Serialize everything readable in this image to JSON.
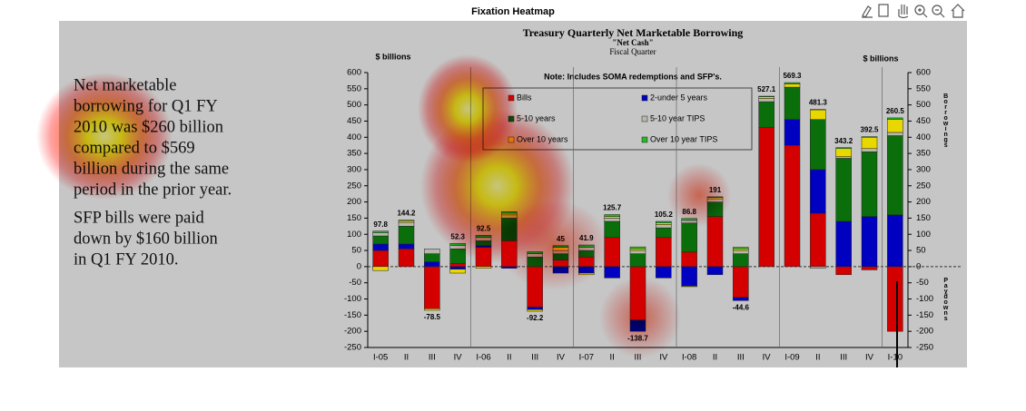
{
  "window": {
    "title": "Fixation Heatmap"
  },
  "slide": {
    "paragraphs": [
      {
        "lines": [
          "Net marketable",
          "borrowing for Q1 FY",
          "2010 was $260 billion",
          "compared to $569",
          "billion during the same",
          "period in the prior year."
        ]
      },
      {
        "lines": [
          "SFP bills were paid",
          "down by $160 billion",
          "in Q1 FY 2010."
        ]
      }
    ]
  },
  "chart_data": {
    "type": "bar",
    "stacked": true,
    "title": "Treasury Quarterly Net Marketable Borrowing",
    "subtitle": [
      "\"Net Cash\"",
      "Fiscal Quarter"
    ],
    "y_label": "$ billions",
    "y2_label": "$ billions",
    "note": "Note: Includes SOMA redemptions and SFP's.",
    "y2_annotations": [
      "Borrowings",
      "Paydowns"
    ],
    "categories": [
      "I-05",
      "II",
      "III",
      "IV",
      "I-06",
      "II",
      "III",
      "IV",
      "I-07",
      "II",
      "III",
      "IV",
      "I-08",
      "II",
      "III",
      "IV",
      "I-09",
      "II",
      "III",
      "IV",
      "I-10"
    ],
    "series": [
      {
        "name": "Bills",
        "color": "#d40000",
        "values": [
          50,
          55,
          -130,
          10,
          60,
          80,
          -125,
          20,
          30,
          90,
          -165,
          90,
          45,
          155,
          -95,
          430,
          375,
          165,
          -25,
          -10,
          -200
        ]
      },
      {
        "name": "2-under 5 years",
        "color": "#0000c0",
        "values": [
          20,
          15,
          15,
          -8,
          5,
          -5,
          -8,
          -20,
          -20,
          -35,
          -35,
          -35,
          -60,
          -25,
          -10,
          0,
          80,
          135,
          140,
          155,
          160
        ]
      },
      {
        "name": "5-10 years",
        "color": "#0a6e0a",
        "values": [
          25,
          55,
          25,
          45,
          15,
          70,
          30,
          20,
          20,
          50,
          40,
          30,
          90,
          45,
          40,
          80,
          100,
          155,
          195,
          200,
          245
        ]
      },
      {
        "name": "5-10 year TIPS",
        "color": "#b8b8b0",
        "values": [
          10,
          12,
          15,
          10,
          10,
          10,
          10,
          10,
          10,
          10,
          10,
          10,
          8,
          10,
          10,
          10,
          0,
          -5,
          5,
          10,
          10
        ]
      },
      {
        "name": "Over 10 years",
        "color": "#e8d800",
        "values": [
          -12,
          5,
          -5,
          -12,
          -5,
          5,
          -5,
          10,
          -5,
          5,
          5,
          5,
          -2,
          4,
          5,
          5,
          10,
          30,
          25,
          35,
          40
        ]
      },
      {
        "name": "Over 10 year TIPS",
        "color": "#22bb22",
        "values": [
          5,
          2,
          0,
          7,
          7,
          5,
          6,
          5,
          7,
          6,
          6,
          5,
          6,
          2,
          5,
          2,
          4,
          1,
          3,
          2,
          5
        ]
      }
    ],
    "total_labels": [
      97.8,
      144.2,
      -78.5,
      52.3,
      92.5,
      null,
      -92.2,
      45.0,
      41.9,
      125.7,
      -138.7,
      105.2,
      86.8,
      191.0,
      -44.6,
      527.1,
      569.3,
      481.3,
      343.2,
      392.5,
      260.5
    ],
    "ylim": [
      -250,
      600
    ],
    "yticks": [
      -250,
      -200,
      -150,
      -100,
      -50,
      0,
      50,
      100,
      150,
      200,
      250,
      300,
      350,
      400,
      450,
      500,
      550,
      600
    ]
  }
}
